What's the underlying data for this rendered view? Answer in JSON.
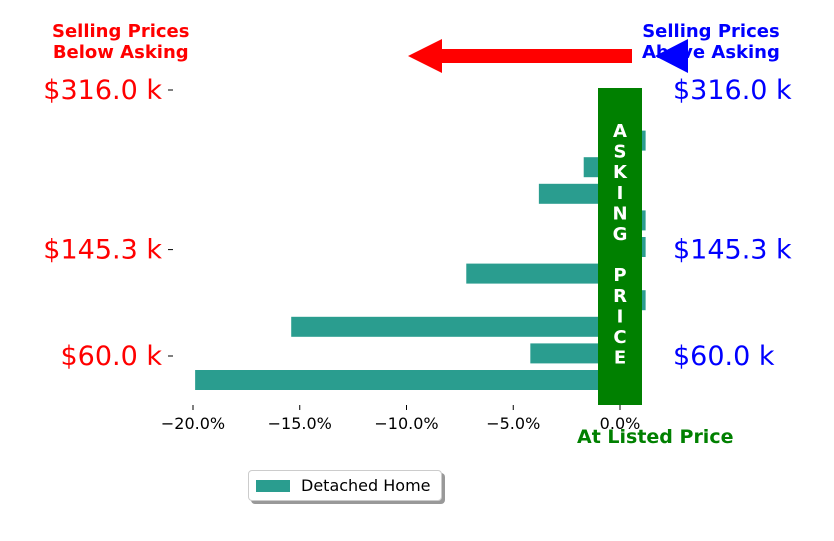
{
  "header": {
    "left_line1": "Selling Prices",
    "left_line2": "Below Asking",
    "right_line1": "Selling Prices",
    "right_line2": "Above Asking"
  },
  "asking_price_label": "ASKING PRICE",
  "listed_price_label": "At Listed Price",
  "legend": {
    "label": "Detached Home"
  },
  "colors": {
    "bar": "#2a9d8f",
    "asking_band": "#008000",
    "below": "#ff0000",
    "above": "#0000ff",
    "listed": "#008000"
  },
  "chart_data": {
    "type": "bar",
    "orientation": "horizontal",
    "series": [
      {
        "name": "Detached Home",
        "values": [
          -1.0,
          1.2,
          -1.7,
          -3.8,
          1.2,
          1.2,
          -7.2,
          1.2,
          -15.4,
          -4.2,
          -19.9
        ]
      }
    ],
    "xlim": [
      -22,
      2
    ],
    "xticks": [
      "−20.0%",
      "−15.0%",
      "−10.0%",
      "−5.0%",
      "0.0%"
    ],
    "xtick_values": [
      -20,
      -15,
      -10,
      -5,
      0
    ],
    "y_ticks_left": [
      "$316.0 k",
      "$145.3 k",
      "$60.0 k"
    ],
    "y_ticks_right": [
      "$316.0 k",
      "$145.3 k",
      "$60.0 k"
    ],
    "y_tick_bar_index": [
      0,
      6,
      10
    ],
    "grid": false,
    "legend_position": "below"
  }
}
